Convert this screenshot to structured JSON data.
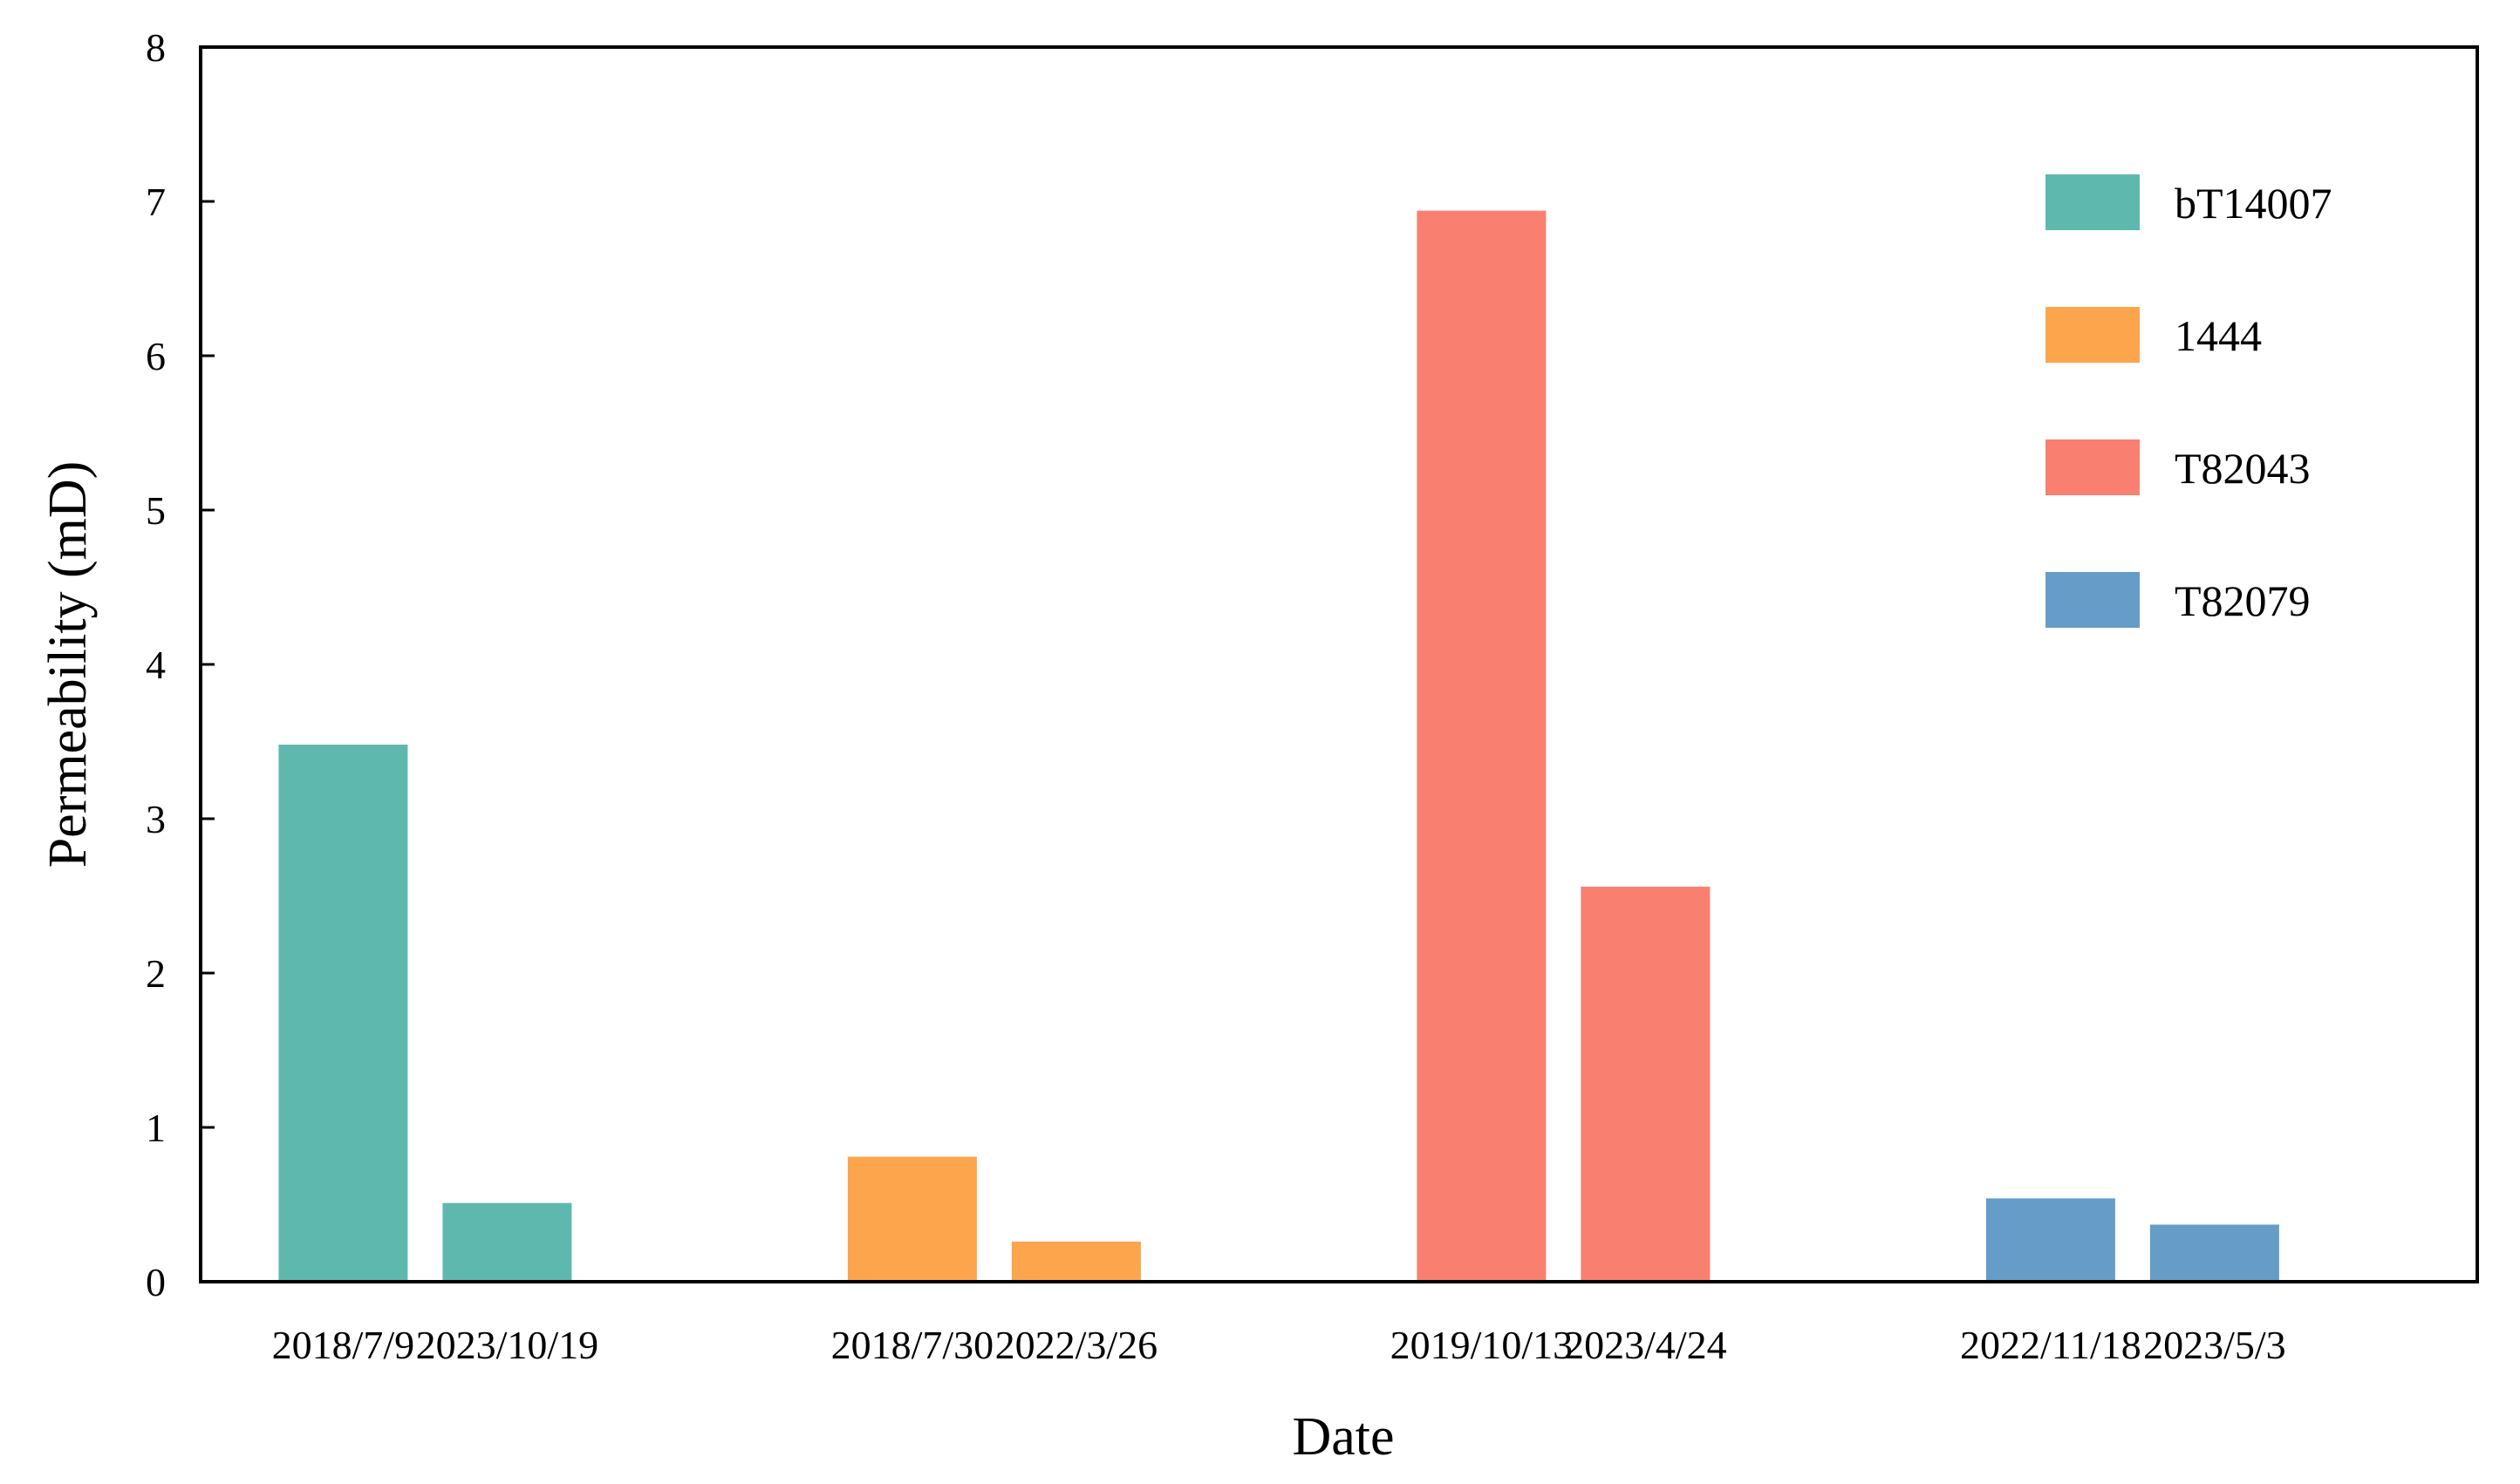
{
  "chart_data": {
    "type": "bar",
    "title": "",
    "xlabel": "Date",
    "ylabel": "Permeability (mD)",
    "ylim": [
      0,
      8
    ],
    "yticks": [
      0,
      1,
      2,
      3,
      4,
      5,
      6,
      7,
      8
    ],
    "grid": false,
    "legend_position": "top-right",
    "groups": [
      {
        "name": "bT14007",
        "color": "#5fb8ae",
        "bars": [
          {
            "date": "2018/7/9",
            "value": 3.48
          },
          {
            "date": "2023/10/19",
            "value": 0.51
          }
        ]
      },
      {
        "name": "1444",
        "color": "#fca54c",
        "bars": [
          {
            "date": "2018/7/30",
            "value": 0.81
          },
          {
            "date": "2022/3/26",
            "value": 0.26
          }
        ]
      },
      {
        "name": "T82043",
        "color": "#f98070",
        "bars": [
          {
            "date": "2019/10/13",
            "value": 6.94
          },
          {
            "date": "2023/4/24",
            "value": 2.56
          }
        ]
      },
      {
        "name": "T82079",
        "color": "#659cc8",
        "bars": [
          {
            "date": "2022/11/18",
            "value": 0.54
          },
          {
            "date": "2023/5/3",
            "value": 0.37
          }
        ]
      }
    ]
  }
}
